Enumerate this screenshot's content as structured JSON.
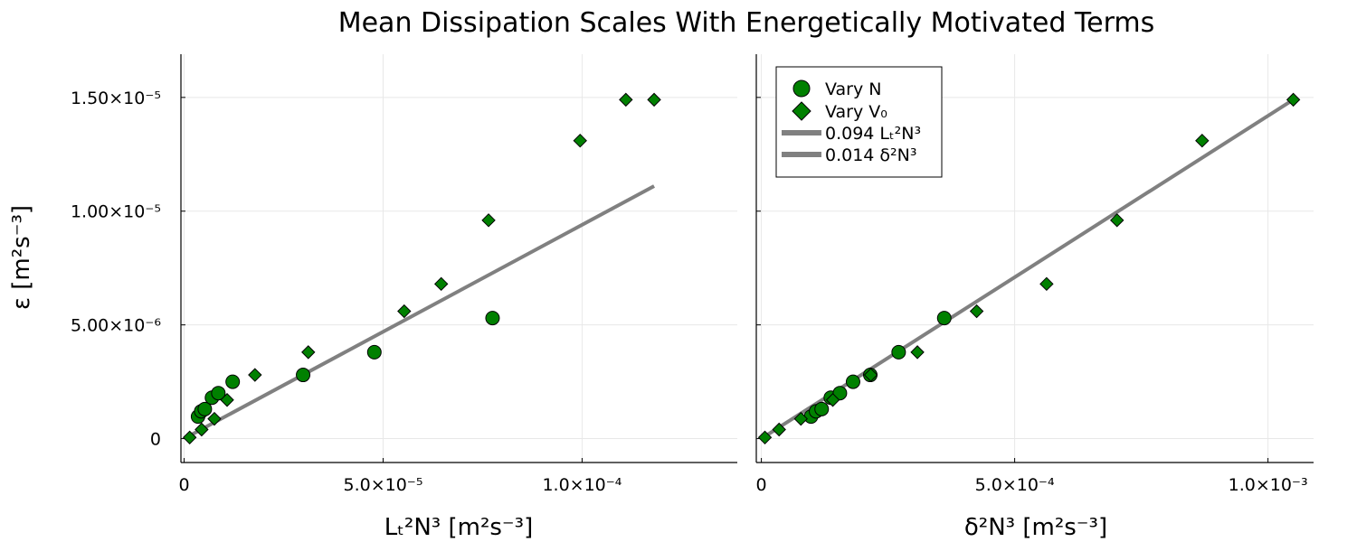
{
  "figure": {
    "title": "Mean Dissipation Scales With Energetically Motivated Terms",
    "ylabel": "ε [m²s⁻³]"
  },
  "legend": {
    "entries": [
      {
        "label": "Vary N",
        "kind": "circle"
      },
      {
        "label": "Vary V₀",
        "kind": "diamond"
      },
      {
        "label": "0.094 Lₜ²N³",
        "kind": "line"
      },
      {
        "label": "0.014 δ²N³",
        "kind": "line"
      }
    ],
    "placement": "top-left"
  },
  "colors": {
    "marker_fill": "#008000",
    "marker_edge": "#000000",
    "fit_line": "#808080",
    "grid": "#e8e8e8"
  },
  "chart_data": [
    {
      "type": "scatter",
      "xlabel": "Lₜ²N³ [m²s⁻³]",
      "ylabel": "ε [m²s⁻³]",
      "xlim": [
        -8e-07,
        0.000139
      ],
      "ylim": [
        -1.05e-06,
        1.69e-05
      ],
      "xticks": [
        {
          "value": 0,
          "label": "0"
        },
        {
          "value": 5e-05,
          "label": "5.0×10⁻⁵"
        },
        {
          "value": 0.0001,
          "label": "1.0×10⁻⁴"
        }
      ],
      "yticks": [
        {
          "value": 0,
          "label": "0"
        },
        {
          "value": 5e-06,
          "label": "5.00×10⁻⁶"
        },
        {
          "value": 1e-05,
          "label": "1.00×10⁻⁵"
        },
        {
          "value": 1.5e-05,
          "label": "1.50×10⁻⁵"
        }
      ],
      "grid": true,
      "series": [
        {
          "name": "Vary N",
          "marker": "circle",
          "x": [
            3.5e-06,
            4.3e-06,
            5.2e-06,
            7e-06,
            8.6e-06,
            1.22e-05,
            2.99e-05,
            4.78e-05,
            7.75e-05
          ],
          "y": [
            9.7e-07,
            1.2e-06,
            1.3e-06,
            1.8e-06,
            2e-06,
            2.5e-06,
            2.8e-06,
            3.8e-06,
            5.3e-06
          ]
        },
        {
          "name": "Vary V₀",
          "marker": "diamond",
          "x": [
            1.4e-06,
            4.4e-06,
            7.6e-06,
            1.08e-05,
            1.78e-05,
            3.12e-05,
            5.53e-05,
            6.46e-05,
            7.65e-05,
            9.95e-05,
            0.000111,
            0.0001181
          ],
          "y": [
            5e-08,
            4e-07,
            8.7e-07,
            1.7e-06,
            2.8e-06,
            3.8e-06,
            5.6e-06,
            6.8e-06,
            9.6e-06,
            1.31e-05,
            1.49e-05,
            1.49e-05
          ]
        },
        {
          "name": "0.094 Lₜ²N³",
          "marker": "line",
          "x": [
            1.4e-06,
            0.0001181
          ],
          "y": [
            1.3e-07,
            1.11e-05
          ]
        }
      ]
    },
    {
      "type": "scatter",
      "xlabel": "δ²N³ [m²s⁻³]",
      "xlim": [
        -1e-05,
        0.00109
      ],
      "ylim": [
        -1.05e-06,
        1.69e-05
      ],
      "xticks": [
        {
          "value": 0,
          "label": "0"
        },
        {
          "value": 0.0005,
          "label": "5.0×10⁻⁴"
        },
        {
          "value": 0.001,
          "label": "1.0×10⁻³"
        }
      ],
      "yticks": [
        0,
        5e-06,
        1e-05,
        1.5e-05
      ],
      "grid": true,
      "series": [
        {
          "name": "Vary N",
          "marker": "circle",
          "x": [
            9.8e-05,
            0.000108,
            0.000119,
            0.000137,
            0.000155,
            0.000181,
            0.000215,
            0.000271,
            0.000361
          ],
          "y": [
            9.7e-07,
            1.2e-06,
            1.3e-06,
            1.8e-06,
            2e-06,
            2.5e-06,
            2.8e-06,
            3.8e-06,
            5.3e-06
          ]
        },
        {
          "name": "Vary V₀",
          "marker": "diamond",
          "x": [
            7e-06,
            3.5e-05,
            7.8e-05,
            0.000141,
            0.000216,
            0.000308,
            0.000425,
            0.000563,
            0.000702,
            0.00087,
            0.00105
          ],
          "y": [
            5e-08,
            4e-07,
            8.7e-07,
            1.7e-06,
            2.8e-06,
            3.8e-06,
            5.6e-06,
            6.8e-06,
            9.6e-06,
            1.31e-05,
            1.49e-05
          ]
        },
        {
          "name": "0.014 δ²N³",
          "marker": "line",
          "x": [
            7e-06,
            0.00105
          ],
          "y": [
            1e-07,
            1.49e-05
          ]
        }
      ]
    }
  ]
}
